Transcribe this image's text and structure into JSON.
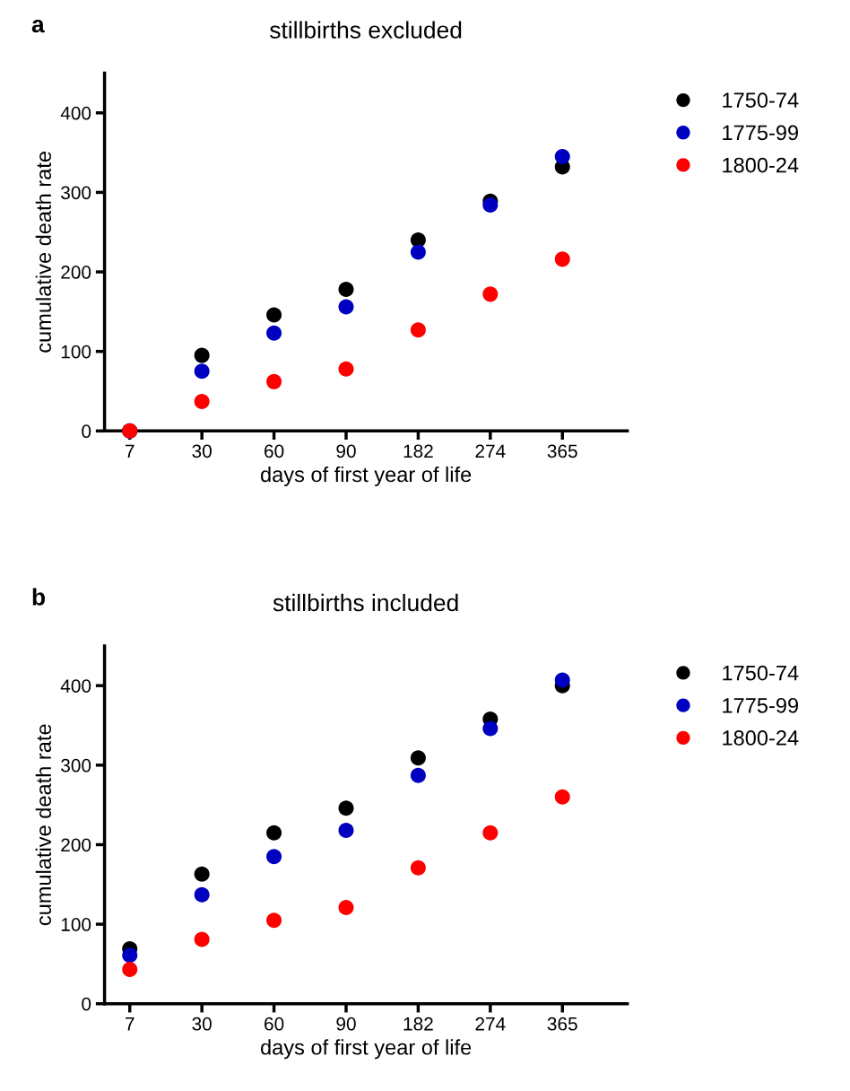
{
  "chart_data": [
    {
      "type": "scatter",
      "title": "stillbirths excluded",
      "xlabel": "days of first year of life",
      "ylabel": "cumulative death rate",
      "annotations": [
        "a"
      ],
      "categories": [
        "7",
        "30",
        "60",
        "90",
        "182",
        "274",
        "365"
      ],
      "series": [
        {
          "name": "1750-74",
          "color": "#000000",
          "values": [
            0,
            95,
            146,
            178,
            240,
            289,
            332
          ]
        },
        {
          "name": "1775-99",
          "color": "#0000c0",
          "values": [
            0,
            75,
            123,
            156,
            225,
            284,
            345
          ]
        },
        {
          "name": "1800-24",
          "color": "#ff0000",
          "values": [
            0,
            37,
            62,
            78,
            127,
            172,
            216
          ]
        }
      ],
      "ylim": [
        0,
        450
      ],
      "yticks": [
        0,
        100,
        200,
        300,
        400
      ],
      "grid": false,
      "legend": "top right",
      "marker": "circle"
    },
    {
      "type": "scatter",
      "title": "stillbirths included",
      "xlabel": "days of first year of life",
      "ylabel": "cumulative death rate",
      "annotations": [
        "b"
      ],
      "categories": [
        "7",
        "30",
        "60",
        "90",
        "182",
        "274",
        "365"
      ],
      "series": [
        {
          "name": "1750-74",
          "color": "#000000",
          "values": [
            69,
            163,
            215,
            246,
            309,
            358,
            400
          ]
        },
        {
          "name": "1775-99",
          "color": "#0000c0",
          "values": [
            61,
            137,
            185,
            218,
            287,
            346,
            407
          ]
        },
        {
          "name": "1800-24",
          "color": "#ff0000",
          "values": [
            43,
            81,
            105,
            121,
            171,
            215,
            260
          ]
        }
      ],
      "ylim": [
        0,
        450
      ],
      "yticks": [
        0,
        100,
        200,
        300,
        400
      ],
      "grid": false,
      "legend": "top right",
      "marker": "circle"
    }
  ]
}
